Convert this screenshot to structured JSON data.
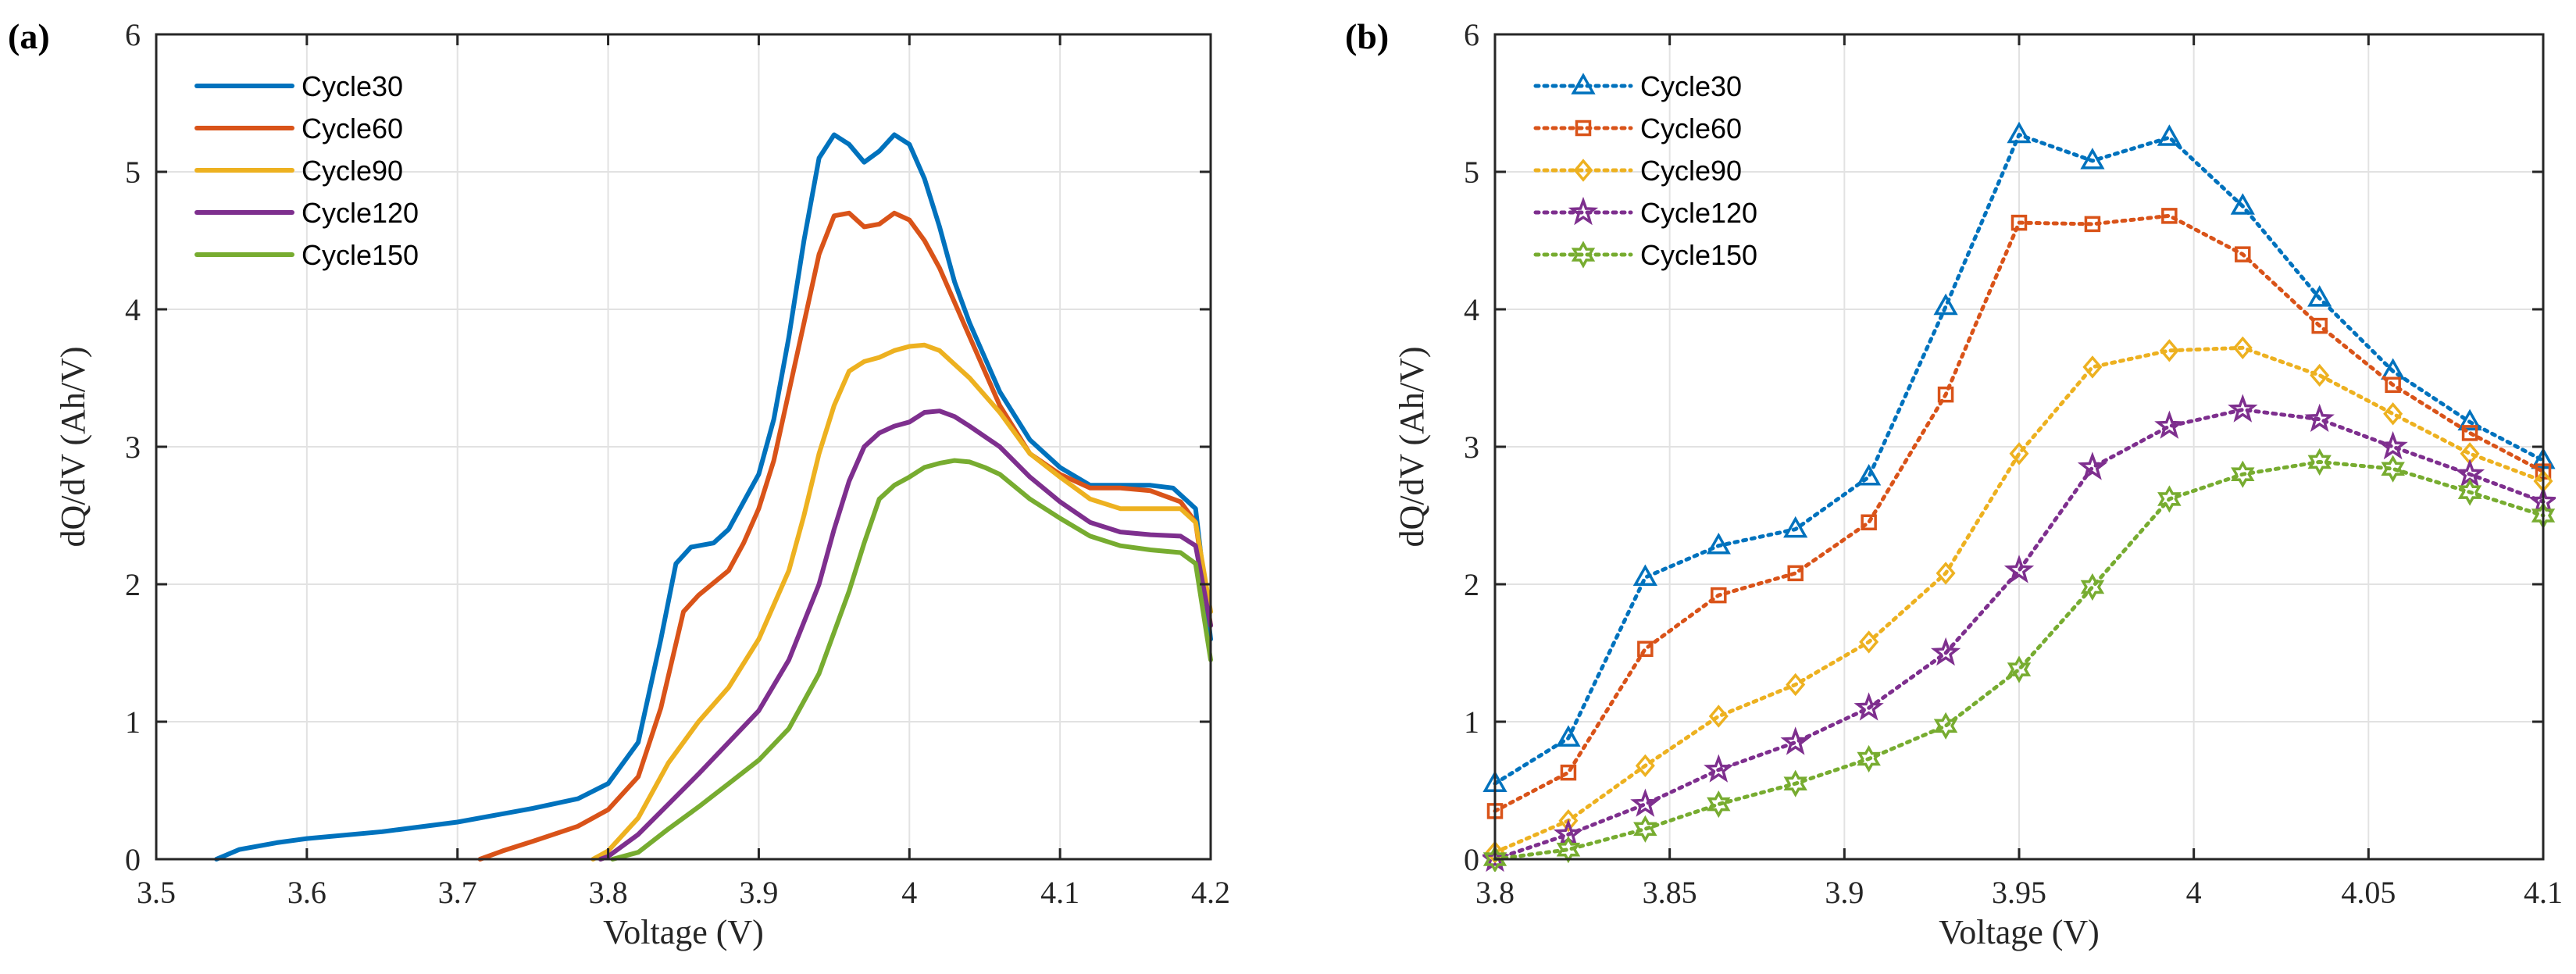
{
  "chart_data": [
    {
      "type": "line",
      "panel_label": "(a)",
      "xlabel": "Voltage (V)",
      "ylabel": "dQ/dV (Ah/V)",
      "xlim": [
        3.5,
        4.2
      ],
      "ylim": [
        0,
        6
      ],
      "xticks": [
        3.5,
        3.6,
        3.7,
        3.8,
        3.9,
        4.0,
        4.1,
        4.2
      ],
      "xtick_labels": [
        "3.5",
        "3.6",
        "3.7",
        "3.8",
        "3.9",
        "4",
        "4.1",
        "4.2"
      ],
      "yticks": [
        0,
        1,
        2,
        3,
        4,
        5,
        6
      ],
      "ytick_labels": [
        "0",
        "1",
        "2",
        "3",
        "4",
        "5",
        "6"
      ],
      "grid": true,
      "legend_position": "top-left",
      "series": [
        {
          "name": "Cycle30",
          "color": "#0072BD",
          "points": [
            [
              3.54,
              0
            ],
            [
              3.555,
              0.07
            ],
            [
              3.58,
              0.12
            ],
            [
              3.6,
              0.15
            ],
            [
              3.65,
              0.2
            ],
            [
              3.7,
              0.27
            ],
            [
              3.75,
              0.37
            ],
            [
              3.78,
              0.44
            ],
            [
              3.8,
              0.55
            ],
            [
              3.82,
              0.85
            ],
            [
              3.835,
              1.6
            ],
            [
              3.845,
              2.15
            ],
            [
              3.855,
              2.27
            ],
            [
              3.87,
              2.3
            ],
            [
              3.88,
              2.4
            ],
            [
              3.89,
              2.6
            ],
            [
              3.9,
              2.8
            ],
            [
              3.91,
              3.2
            ],
            [
              3.92,
              3.8
            ],
            [
              3.93,
              4.5
            ],
            [
              3.94,
              5.1
            ],
            [
              3.95,
              5.27
            ],
            [
              3.96,
              5.2
            ],
            [
              3.97,
              5.07
            ],
            [
              3.98,
              5.15
            ],
            [
              3.99,
              5.27
            ],
            [
              4.0,
              5.2
            ],
            [
              4.01,
              4.95
            ],
            [
              4.02,
              4.6
            ],
            [
              4.03,
              4.2
            ],
            [
              4.04,
              3.9
            ],
            [
              4.06,
              3.4
            ],
            [
              4.08,
              3.05
            ],
            [
              4.1,
              2.85
            ],
            [
              4.12,
              2.72
            ],
            [
              4.14,
              2.72
            ],
            [
              4.16,
              2.72
            ],
            [
              4.175,
              2.7
            ],
            [
              4.19,
              2.55
            ],
            [
              4.2,
              1.6
            ]
          ]
        },
        {
          "name": "Cycle60",
          "color": "#D95319",
          "points": [
            [
              3.715,
              0
            ],
            [
              3.73,
              0.06
            ],
            [
              3.75,
              0.13
            ],
            [
              3.78,
              0.24
            ],
            [
              3.8,
              0.36
            ],
            [
              3.82,
              0.6
            ],
            [
              3.835,
              1.1
            ],
            [
              3.85,
              1.8
            ],
            [
              3.86,
              1.92
            ],
            [
              3.88,
              2.1
            ],
            [
              3.89,
              2.3
            ],
            [
              3.9,
              2.55
            ],
            [
              3.91,
              2.9
            ],
            [
              3.92,
              3.4
            ],
            [
              3.93,
              3.9
            ],
            [
              3.94,
              4.4
            ],
            [
              3.95,
              4.68
            ],
            [
              3.96,
              4.7
            ],
            [
              3.97,
              4.6
            ],
            [
              3.98,
              4.62
            ],
            [
              3.99,
              4.7
            ],
            [
              4.0,
              4.65
            ],
            [
              4.01,
              4.5
            ],
            [
              4.02,
              4.3
            ],
            [
              4.04,
              3.8
            ],
            [
              4.06,
              3.3
            ],
            [
              4.08,
              2.95
            ],
            [
              4.1,
              2.8
            ],
            [
              4.12,
              2.7
            ],
            [
              4.14,
              2.7
            ],
            [
              4.16,
              2.68
            ],
            [
              4.18,
              2.6
            ],
            [
              4.19,
              2.45
            ],
            [
              4.2,
              1.7
            ]
          ]
        },
        {
          "name": "Cycle90",
          "color": "#EDB120",
          "points": [
            [
              3.79,
              0
            ],
            [
              3.8,
              0.06
            ],
            [
              3.82,
              0.3
            ],
            [
              3.84,
              0.7
            ],
            [
              3.86,
              1.0
            ],
            [
              3.88,
              1.25
            ],
            [
              3.9,
              1.6
            ],
            [
              3.92,
              2.1
            ],
            [
              3.93,
              2.5
            ],
            [
              3.94,
              2.95
            ],
            [
              3.95,
              3.3
            ],
            [
              3.96,
              3.55
            ],
            [
              3.97,
              3.62
            ],
            [
              3.98,
              3.65
            ],
            [
              3.99,
              3.7
            ],
            [
              4.0,
              3.73
            ],
            [
              4.01,
              3.74
            ],
            [
              4.02,
              3.7
            ],
            [
              4.03,
              3.6
            ],
            [
              4.04,
              3.5
            ],
            [
              4.06,
              3.25
            ],
            [
              4.08,
              2.95
            ],
            [
              4.1,
              2.78
            ],
            [
              4.12,
              2.62
            ],
            [
              4.14,
              2.55
            ],
            [
              4.16,
              2.55
            ],
            [
              4.18,
              2.55
            ],
            [
              4.19,
              2.45
            ],
            [
              4.2,
              1.8
            ]
          ]
        },
        {
          "name": "Cycle120",
          "color": "#7E2F8E",
          "points": [
            [
              3.795,
              0
            ],
            [
              3.8,
              0.02
            ],
            [
              3.82,
              0.18
            ],
            [
              3.84,
              0.4
            ],
            [
              3.86,
              0.62
            ],
            [
              3.88,
              0.85
            ],
            [
              3.9,
              1.08
            ],
            [
              3.92,
              1.45
            ],
            [
              3.94,
              2.0
            ],
            [
              3.95,
              2.4
            ],
            [
              3.96,
              2.75
            ],
            [
              3.97,
              3.0
            ],
            [
              3.98,
              3.1
            ],
            [
              3.99,
              3.15
            ],
            [
              4.0,
              3.18
            ],
            [
              4.01,
              3.25
            ],
            [
              4.02,
              3.26
            ],
            [
              4.03,
              3.22
            ],
            [
              4.04,
              3.15
            ],
            [
              4.06,
              3.0
            ],
            [
              4.08,
              2.78
            ],
            [
              4.1,
              2.6
            ],
            [
              4.12,
              2.45
            ],
            [
              4.14,
              2.38
            ],
            [
              4.16,
              2.36
            ],
            [
              4.18,
              2.35
            ],
            [
              4.19,
              2.28
            ],
            [
              4.2,
              1.7
            ]
          ]
        },
        {
          "name": "Cycle150",
          "color": "#77AC30",
          "points": [
            [
              3.803,
              0
            ],
            [
              3.82,
              0.05
            ],
            [
              3.84,
              0.22
            ],
            [
              3.86,
              0.38
            ],
            [
              3.88,
              0.55
            ],
            [
              3.9,
              0.72
            ],
            [
              3.92,
              0.95
            ],
            [
              3.94,
              1.35
            ],
            [
              3.96,
              1.95
            ],
            [
              3.97,
              2.3
            ],
            [
              3.98,
              2.62
            ],
            [
              3.99,
              2.72
            ],
            [
              4.0,
              2.78
            ],
            [
              4.01,
              2.85
            ],
            [
              4.02,
              2.88
            ],
            [
              4.03,
              2.9
            ],
            [
              4.04,
              2.89
            ],
            [
              4.05,
              2.85
            ],
            [
              4.06,
              2.8
            ],
            [
              4.08,
              2.62
            ],
            [
              4.1,
              2.48
            ],
            [
              4.12,
              2.35
            ],
            [
              4.14,
              2.28
            ],
            [
              4.16,
              2.25
            ],
            [
              4.18,
              2.23
            ],
            [
              4.19,
              2.15
            ],
            [
              4.2,
              1.45
            ]
          ]
        }
      ]
    },
    {
      "type": "line",
      "panel_label": "(b)",
      "xlabel": "Voltage (V)",
      "ylabel": "dQ/dV (Ah/V)",
      "xlim": [
        3.8,
        4.1
      ],
      "ylim": [
        0,
        6
      ],
      "xticks": [
        3.8,
        3.85,
        3.9,
        3.95,
        4.0,
        4.05,
        4.1
      ],
      "xtick_labels": [
        "3.8",
        "3.85",
        "3.9",
        "3.95",
        "4",
        "4.05",
        "4.1"
      ],
      "yticks": [
        0,
        1,
        2,
        3,
        4,
        5,
        6
      ],
      "ytick_labels": [
        "0",
        "1",
        "2",
        "3",
        "4",
        "5",
        "6"
      ],
      "grid": true,
      "legend_position": "top-left",
      "x": [
        3.8,
        3.821,
        3.843,
        3.864,
        3.886,
        3.907,
        3.929,
        3.95,
        3.971,
        3.993,
        4.014,
        4.036,
        4.057,
        4.079,
        4.1
      ],
      "series": [
        {
          "name": "Cycle30",
          "color": "#0072BD",
          "marker": "triangle",
          "values": [
            0.55,
            0.88,
            2.05,
            2.28,
            2.4,
            2.78,
            4.02,
            5.27,
            5.08,
            5.25,
            4.75,
            4.08,
            3.55,
            3.18,
            2.9
          ]
        },
        {
          "name": "Cycle60",
          "color": "#D95319",
          "marker": "square",
          "values": [
            0.35,
            0.63,
            1.53,
            1.92,
            2.08,
            2.45,
            3.38,
            4.63,
            4.62,
            4.68,
            4.4,
            3.88,
            3.45,
            3.1,
            2.82
          ]
        },
        {
          "name": "Cycle90",
          "color": "#EDB120",
          "marker": "diamond",
          "values": [
            0.05,
            0.28,
            0.68,
            1.04,
            1.27,
            1.58,
            2.08,
            2.95,
            3.58,
            3.7,
            3.72,
            3.52,
            3.24,
            2.95,
            2.75
          ]
        },
        {
          "name": "Cycle120",
          "color": "#7E2F8E",
          "marker": "star",
          "values": [
            0.0,
            0.18,
            0.4,
            0.65,
            0.85,
            1.1,
            1.5,
            2.1,
            2.85,
            3.15,
            3.27,
            3.2,
            3.0,
            2.8,
            2.6
          ]
        },
        {
          "name": "Cycle150",
          "color": "#77AC30",
          "marker": "hexagram",
          "values": [
            0.0,
            0.07,
            0.22,
            0.4,
            0.55,
            0.73,
            0.97,
            1.38,
            1.98,
            2.62,
            2.8,
            2.89,
            2.84,
            2.67,
            2.5
          ]
        }
      ]
    }
  ]
}
